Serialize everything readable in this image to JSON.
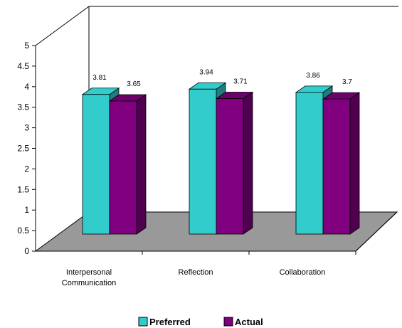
{
  "chart_data": {
    "type": "bar",
    "title": "",
    "xlabel": "",
    "ylabel": "",
    "categories": [
      "Interpersonal Communication",
      "Reflection",
      "Collaboration"
    ],
    "category_label_lines": [
      [
        "Interpersonal",
        "Communication"
      ],
      [
        "Reflection"
      ],
      [
        "Collaboration"
      ]
    ],
    "series": [
      {
        "name": "Preferred",
        "values": [
          3.81,
          3.94,
          3.86
        ],
        "color": "#33CCCC"
      },
      {
        "name": "Actual",
        "values": [
          3.65,
          3.71,
          3.7
        ],
        "color": "#800080"
      }
    ],
    "ylim": [
      0,
      5
    ],
    "yticks": [
      "0",
      "0.5",
      "1",
      "1.5",
      "2",
      "2.5",
      "3",
      "3.5",
      "4",
      "4.5",
      "5"
    ],
    "grid": false,
    "three_d": true,
    "floor_color": "#999999",
    "data_labels": true,
    "legend_position": "bottom"
  }
}
